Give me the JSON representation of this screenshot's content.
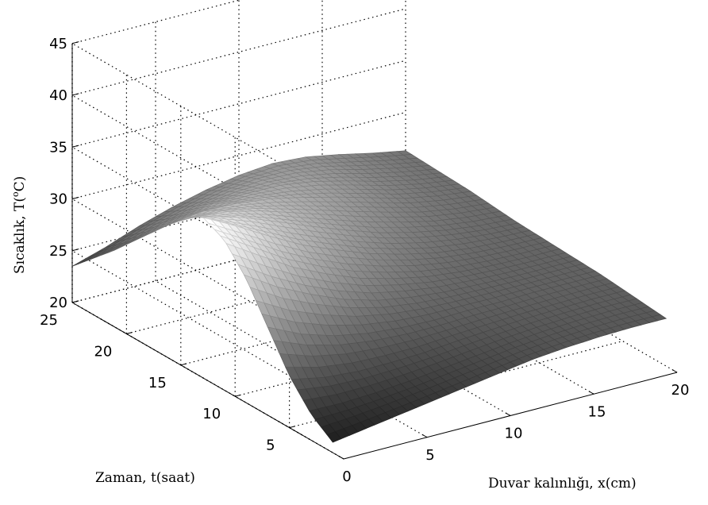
{
  "chart_data": {
    "type": "surface",
    "xlabel": "Duvar kalınlığı, x(cm)",
    "ylabel": "Zaman, t(saat)",
    "zlabel": "Sıcaklık, T(°C)",
    "zlabel_base": "Sıcaklık, T(",
    "zlabel_sup": "o",
    "zlabel_end": "C)",
    "xlim": [
      0,
      20
    ],
    "ylim": [
      0,
      25
    ],
    "zlim": [
      20,
      45
    ],
    "x_ticks": [
      "0",
      "5",
      "10",
      "15",
      "20"
    ],
    "y_ticks": [
      "5",
      "10",
      "15",
      "20",
      "25"
    ],
    "z_ticks": [
      "20",
      "25",
      "30",
      "35",
      "40",
      "45"
    ],
    "grid": true,
    "colormap": "gray",
    "x": [
      0,
      2,
      4,
      6,
      8,
      10,
      12,
      14,
      16,
      18,
      20
    ],
    "t": [
      1,
      3,
      5,
      7,
      9,
      11,
      13,
      15,
      17,
      19,
      21,
      23,
      25
    ],
    "T": [
      [
        21,
        21.5,
        22,
        22.5,
        23,
        23.5,
        24,
        24.3,
        24.5,
        24.6,
        24.6
      ],
      [
        22.5,
        22.5,
        22.7,
        23,
        23.4,
        23.8,
        24.2,
        24.5,
        24.7,
        24.8,
        24.8
      ],
      [
        25,
        24.3,
        24,
        24,
        24.1,
        24.4,
        24.6,
        24.8,
        24.9,
        25,
        25
      ],
      [
        28.5,
        27,
        26,
        25.4,
        25.1,
        25,
        25.1,
        25.1,
        25.2,
        25.2,
        25.2
      ],
      [
        32,
        30,
        28.5,
        27.2,
        26.3,
        25.8,
        25.5,
        25.4,
        25.3,
        25.3,
        25.3
      ],
      [
        34.5,
        32.5,
        30.5,
        29,
        27.7,
        26.8,
        26.1,
        25.7,
        25.5,
        25.4,
        25.4
      ],
      [
        35.5,
        33.8,
        32,
        30.3,
        29,
        27.8,
        26.9,
        26.2,
        25.8,
        25.6,
        25.5
      ],
      [
        34.5,
        33.5,
        32.5,
        31.2,
        29.9,
        28.7,
        27.6,
        26.8,
        26.2,
        25.8,
        25.6
      ],
      [
        32.5,
        32.2,
        32,
        31.3,
        30.3,
        29.3,
        28.3,
        27.4,
        26.6,
        26.1,
        25.8
      ],
      [
        30,
        30.4,
        30.8,
        30.7,
        30.3,
        29.6,
        28.8,
        27.9,
        27,
        26.4,
        26
      ],
      [
        27.5,
        28.2,
        29,
        29.5,
        29.6,
        29.5,
        29,
        28.2,
        27.3,
        26.6,
        26.1
      ],
      [
        25.5,
        26.2,
        27.2,
        28,
        28.6,
        28.9,
        28.8,
        28.3,
        27.5,
        26.8,
        26.2
      ],
      [
        23.5,
        24.5,
        25.7,
        26.7,
        27.5,
        28.1,
        28.4,
        28.2,
        27.6,
        26.9,
        26.3
      ]
    ]
  }
}
